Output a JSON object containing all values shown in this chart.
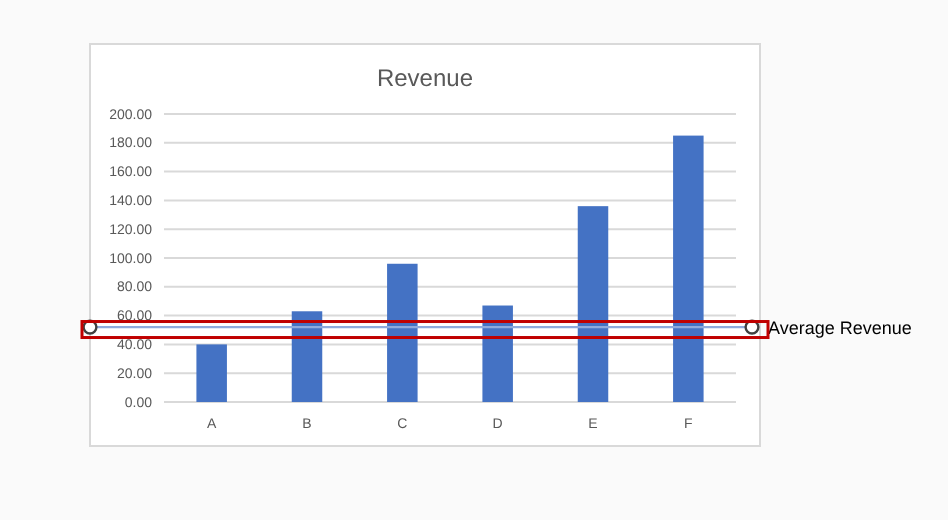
{
  "chart_data": {
    "type": "bar",
    "title": "Revenue",
    "categories": [
      "A",
      "B",
      "C",
      "D",
      "E",
      "F"
    ],
    "values": [
      40,
      63,
      96,
      67,
      136,
      185
    ],
    "color": "#4472c4",
    "ylim": [
      0,
      200
    ],
    "yticks": [
      {
        "value": 0,
        "label": "0.00"
      },
      {
        "value": 20,
        "label": "20.00"
      },
      {
        "value": 40,
        "label": "40.00"
      },
      {
        "value": 60,
        "label": "60.00"
      },
      {
        "value": 80,
        "label": "80.00"
      },
      {
        "value": 100,
        "label": "100.00"
      },
      {
        "value": 120,
        "label": "120.00"
      },
      {
        "value": 140,
        "label": "140.00"
      },
      {
        "value": 160,
        "label": "160.00"
      },
      {
        "value": 180,
        "label": "180.00"
      },
      {
        "value": 200,
        "label": "200.00"
      }
    ],
    "grid": "y",
    "ref_lines": [
      {
        "axis": "y",
        "value": 52,
        "label": "Average Revenue",
        "color": "#8faadc"
      }
    ]
  }
}
